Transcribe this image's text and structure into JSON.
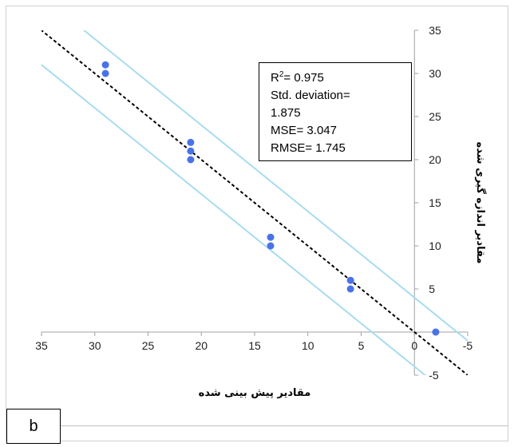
{
  "chart_data": {
    "type": "scatter",
    "title": "",
    "xlabel": "مقادیر پیش بینی شده",
    "ylabel": "مقادیر اندازه گیری شده",
    "xlim": [
      35,
      -5
    ],
    "ylim": [
      -5,
      35
    ],
    "x_reversed": true,
    "x_ticks": [
      "35",
      "30",
      "25",
      "20",
      "15",
      "10",
      "5",
      "0",
      "-5"
    ],
    "y_ticks": [
      "35",
      "30",
      "25",
      "20",
      "15",
      "10",
      "5",
      "",
      "-5"
    ],
    "grid": false,
    "points": [
      {
        "x": 29,
        "y": 31
      },
      {
        "x": 29,
        "y": 30
      },
      {
        "x": 21,
        "y": 22
      },
      {
        "x": 21,
        "y": 21
      },
      {
        "x": 21,
        "y": 20
      },
      {
        "x": 13.5,
        "y": 11
      },
      {
        "x": 13.5,
        "y": 10
      },
      {
        "x": 6,
        "y": 6
      },
      {
        "x": 6,
        "y": 5
      },
      {
        "x": -2,
        "y": 0
      }
    ],
    "reference_line": {
      "slope": 1,
      "intercept": 0,
      "style": "dashed"
    },
    "bands": [
      {
        "slope": 1,
        "intercept": 4
      },
      {
        "slope": 1,
        "intercept": -4
      }
    ],
    "stats": {
      "r2_prefix": "R",
      "r2_sup": "2",
      "r2_value": "= 0.975",
      "std_label": "Std. deviation=",
      "std_value": "1.875",
      "mse": "MSE= 3.047",
      "rmse": "RMSE= 1.745"
    },
    "colors": {
      "points": "#4a72e8",
      "bands": "#a8dcf0",
      "reference": "#000000",
      "axis": "#a0a0a0"
    }
  },
  "panel": {
    "label": "b"
  }
}
